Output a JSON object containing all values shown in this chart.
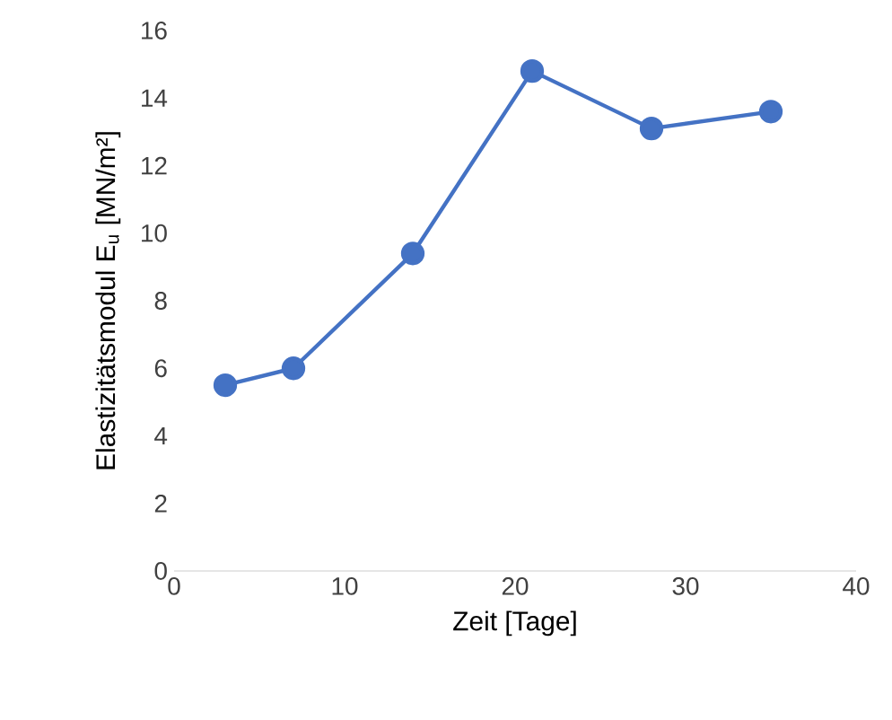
{
  "chart_data": {
    "type": "line",
    "xlabel": "Zeit [Tage]",
    "ylabel": "Elastizitätsmodul E$_{u}$  [MN/m²]",
    "x": [
      3,
      7,
      14,
      21,
      28,
      35
    ],
    "series": [
      {
        "color": "#4472c4",
        "values": [
          5.5,
          6.0,
          9.4,
          14.8,
          13.1,
          13.6
        ]
      }
    ],
    "xlim": [
      0,
      40
    ],
    "xticks": [
      0,
      10,
      20,
      30,
      40
    ],
    "ylim": [
      0,
      16
    ],
    "yticks": [
      0,
      2,
      4,
      6,
      8,
      10,
      12,
      14,
      16
    ],
    "marker": "circle",
    "line_style": "solid",
    "grid": false
  }
}
